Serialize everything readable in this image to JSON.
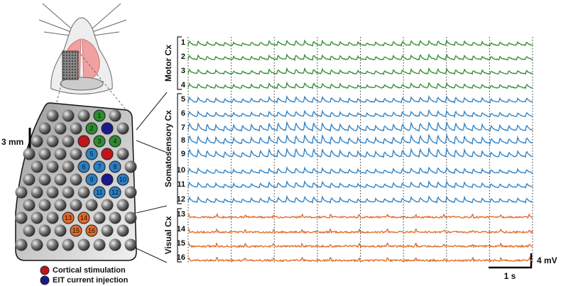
{
  "scale_bar": "3 mm",
  "regions": [
    {
      "label": "Motor Cx",
      "color": "#2e8b2e",
      "channels": [
        "1",
        "2",
        "3",
        "4"
      ]
    },
    {
      "label": "Somatosensory Cx",
      "color": "#2b7fc3",
      "channels": [
        "5",
        "6",
        "7",
        "8",
        "9",
        "10",
        "11",
        "12"
      ]
    },
    {
      "label": "Visual Cx",
      "color": "#e06a2b",
      "channels": [
        "13",
        "14",
        "15",
        "16"
      ]
    }
  ],
  "legend": [
    {
      "label": "Cortical stimulation",
      "color": "#c0141a"
    },
    {
      "label": "EIT current injection",
      "color": "#1a1a8c"
    }
  ],
  "voltage_scale": "4 mV",
  "time_scale": "1 s"
}
